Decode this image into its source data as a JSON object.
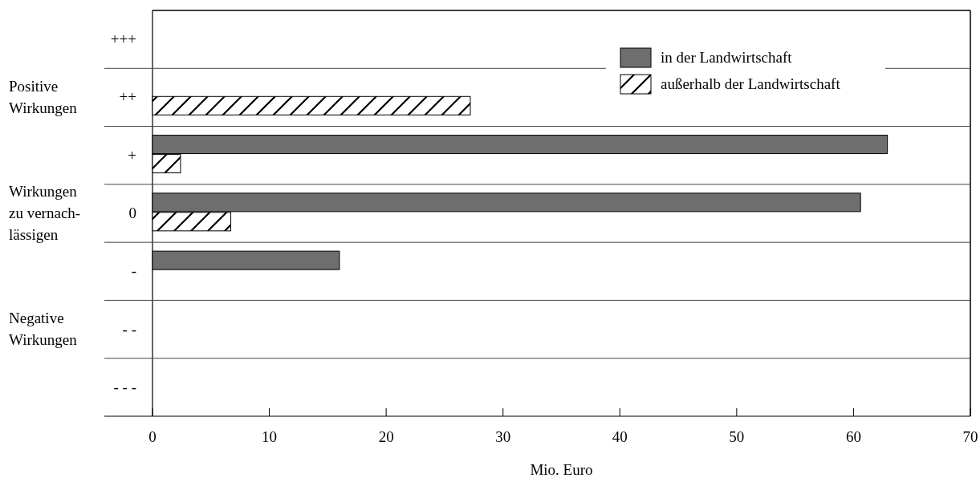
{
  "chart_data": {
    "type": "bar",
    "orientation": "horizontal",
    "xlabel": "Mio. Euro",
    "categories": [
      "+++",
      "++",
      "+",
      "0",
      "-",
      "- -",
      "- - -"
    ],
    "series": [
      {
        "name": "in der Landwirtschaft",
        "color": "#6e6e6e",
        "values": [
          null,
          null,
          62.9,
          60.6,
          16.0,
          null,
          null
        ]
      },
      {
        "name": "außerhalb der Landwirtschaft",
        "color": "#000000",
        "values": [
          null,
          27.2,
          2.4,
          6.7,
          null,
          null,
          null
        ]
      }
    ],
    "xlim": [
      0,
      70
    ],
    "xticks": [
      0,
      10,
      20,
      30,
      40,
      50,
      60,
      70
    ],
    "legend": "top right",
    "annotations": [
      "Positive Wirkungen",
      "Wirkungen zu vernach-lässigen",
      "Negative Wirkungen"
    ]
  }
}
